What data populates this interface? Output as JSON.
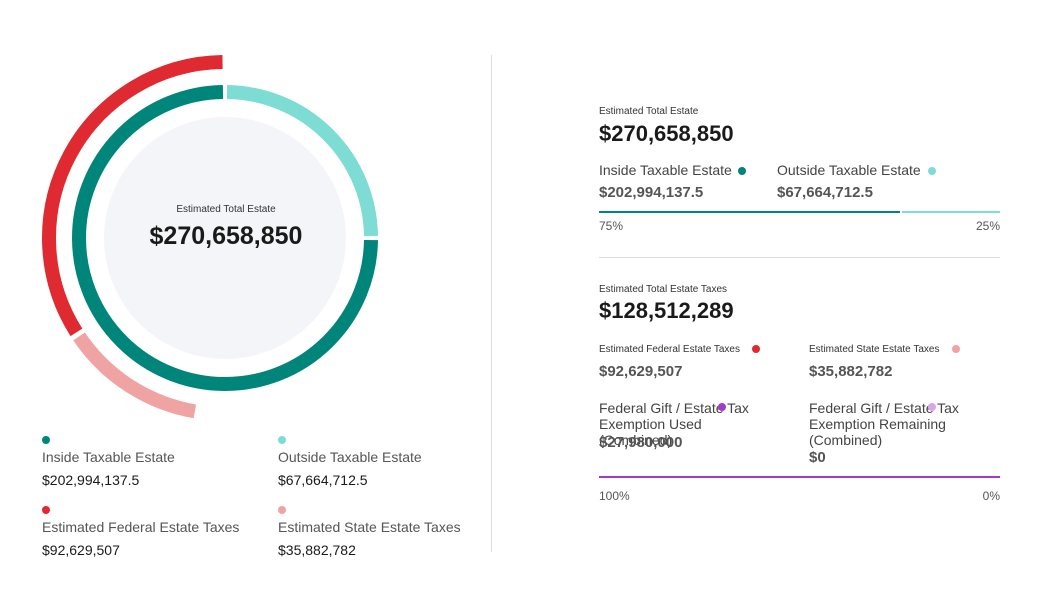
{
  "colors": {
    "inside": "#00857a",
    "outside": "#7ddcd3",
    "federal": "#de2a30",
    "state": "#f0a3a3",
    "center_fill": "#f4f5f9",
    "gift_used": "#a23cc8",
    "gift_remaining": "#d9a4ea"
  },
  "chart_data": {
    "type": "pie",
    "center": {
      "label": "Estimated Total Estate",
      "value": "$270,658,850"
    },
    "rings": [
      {
        "slices": [
          {
            "label": "Inside Taxable Estate",
            "value": 202994137.5,
            "color": "#00857a"
          },
          {
            "label": "Outside Taxable Estate",
            "value": 67664712.5,
            "color": "#7ddcd3"
          }
        ]
      },
      {
        "slices": [
          {
            "label": "Estimated Federal Estate Taxes",
            "value": 92629507,
            "color": "#de2a30"
          },
          {
            "label": "Estimated State Estate Taxes",
            "value": 35882782,
            "color": "#f0a3a3"
          }
        ]
      }
    ]
  },
  "legend": [
    {
      "label": "Inside Taxable Estate",
      "value": "$202,994,137.5",
      "color": "#00857a"
    },
    {
      "label": "Outside Taxable Estate",
      "value": "$67,664,712.5",
      "color": "#7ddcd3"
    },
    {
      "label": "Estimated Federal Estate Taxes",
      "value": "$92,629,507",
      "color": "#de2a30"
    },
    {
      "label": "Estimated State Estate Taxes",
      "value": "$35,882,782",
      "color": "#f0a3a3"
    }
  ],
  "summary": {
    "estate": {
      "label": "Estimated Total Estate",
      "value": "$270,658,850",
      "inside": {
        "label": "Inside Taxable Estate",
        "value": "$202,994,137.5"
      },
      "outside": {
        "label": "Outside Taxable Estate",
        "value": "$67,664,712.5"
      },
      "inside_pct": "75%",
      "outside_pct": "25%",
      "inside_fraction": 0.75
    },
    "taxes": {
      "label": "Estimated Total Estate Taxes",
      "value": "$128,512,289",
      "federal": {
        "label": "Estimated Federal Estate Taxes",
        "value": "$92,629,507"
      },
      "state": {
        "label": "Estimated State Estate Taxes",
        "value": "$35,882,782"
      },
      "gift_used": {
        "label": "Federal Gift / Estate Tax Exemption Used (Combined)",
        "value": "$27,980,000"
      },
      "gift_remaining": {
        "label": "Federal Gift / Estate Tax Exemption Remaining (Combined)",
        "value": "$0"
      },
      "used_pct": "100%",
      "remaining_pct": "0%",
      "used_fraction": 1.0
    }
  }
}
